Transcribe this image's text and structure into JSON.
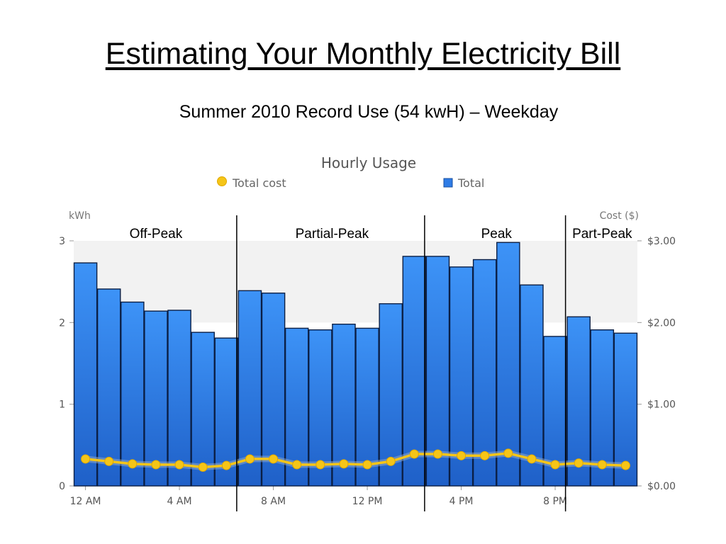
{
  "slide": {
    "title": "Estimating Your Monthly Electricity Bill",
    "subtitle": "Summer 2010 Record Use (54 kwH) – Weekday"
  },
  "chart_data": {
    "type": "bar",
    "title": "Hourly Usage",
    "legend": [
      {
        "name": "Total cost",
        "marker": "circle",
        "color": "#f5c518"
      },
      {
        "name": "Total",
        "marker": "square",
        "color": "#2f7ce6"
      }
    ],
    "legend_placement": "top",
    "y_left_label": "kWh",
    "y_right_label": "Cost ($)",
    "y_left_ticks": [
      "0",
      "1",
      "2",
      "3"
    ],
    "y_right_ticks": [
      "$0.00",
      "$1.00",
      "$2.00",
      "$3.00"
    ],
    "ylim": [
      0,
      3
    ],
    "y_right_lim": [
      0,
      3
    ],
    "x_tick_labels": [
      "12 AM",
      "4 AM",
      "8 AM",
      "12 PM",
      "4 PM",
      "8 PM"
    ],
    "x_tick_hours": [
      0,
      4,
      8,
      12,
      16,
      20
    ],
    "hours": [
      0,
      1,
      2,
      3,
      4,
      5,
      6,
      7,
      8,
      9,
      10,
      11,
      12,
      13,
      14,
      15,
      16,
      17,
      18,
      19,
      20,
      21,
      22,
      23
    ],
    "series": [
      {
        "name": "Total",
        "type": "bar",
        "axis": "left",
        "values": [
          2.73,
          2.41,
          2.25,
          2.14,
          2.15,
          1.88,
          1.81,
          2.39,
          2.36,
          1.93,
          1.91,
          1.98,
          1.93,
          2.23,
          2.81,
          2.81,
          2.68,
          2.77,
          2.98,
          2.46,
          1.83,
          2.07,
          1.91,
          1.87
        ]
      },
      {
        "name": "Total cost",
        "type": "line",
        "axis": "right",
        "values": [
          0.33,
          0.3,
          0.27,
          0.26,
          0.26,
          0.23,
          0.25,
          0.33,
          0.33,
          0.26,
          0.26,
          0.27,
          0.26,
          0.3,
          0.39,
          0.39,
          0.37,
          0.37,
          0.4,
          0.33,
          0.26,
          0.28,
          0.26,
          0.25
        ]
      }
    ],
    "background_band": {
      "from": 2,
      "to": 3,
      "color": "#f2f2f2"
    },
    "periods": [
      {
        "label": "Off-Peak",
        "start_hour": 0,
        "end_hour": 7
      },
      {
        "label": "Partial-Peak",
        "start_hour": 7,
        "end_hour": 15
      },
      {
        "label": "Peak",
        "start_hour": 15,
        "end_hour": 21
      },
      {
        "label": "Part-Peak",
        "start_hour": 21,
        "end_hour": 24
      }
    ],
    "divider_hours": [
      7,
      15,
      21
    ],
    "colors": {
      "bar_top": "#3d93f7",
      "bar_bottom": "#1f60c8",
      "bar_stroke": "#0b1f45",
      "cost_line": "#f5c518",
      "cost_glow": "#8fa6c4"
    }
  }
}
